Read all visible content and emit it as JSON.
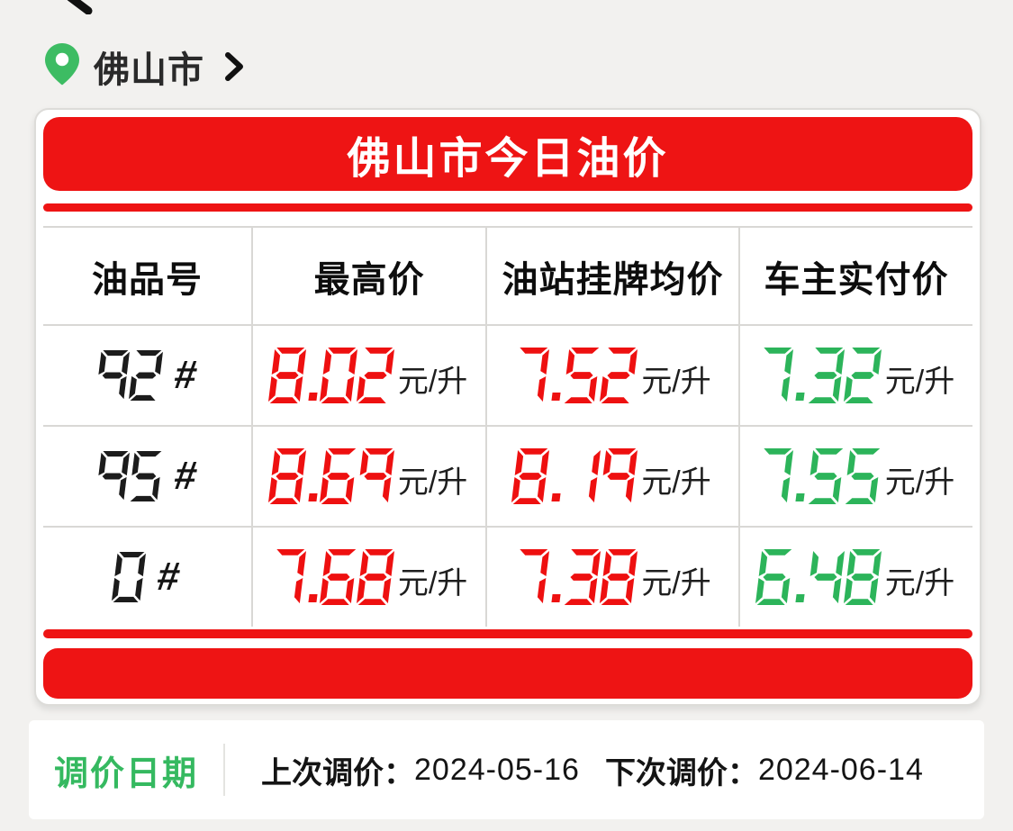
{
  "colors": {
    "red": "#ee1010",
    "green": "#2cb45a",
    "black": "#1c1c1c",
    "banner_red": "#ee1414",
    "pin_green": "#3dbc63",
    "label_green": "#35b960"
  },
  "nav": {
    "location": "佛山市"
  },
  "card": {
    "title": "佛山市今日油价",
    "table": {
      "headers": [
        "油品号",
        "最高价",
        "油站挂牌均价",
        "车主实付价"
      ],
      "unit": "元/升",
      "hash": "#",
      "rows": [
        {
          "product": "92",
          "prices": [
            {
              "value": "8.02",
              "color": "red"
            },
            {
              "value": "7.52",
              "color": "red"
            },
            {
              "value": "7.32",
              "color": "green"
            }
          ]
        },
        {
          "product": "95",
          "prices": [
            {
              "value": "8.69",
              "color": "red"
            },
            {
              "value": "8.19",
              "color": "red"
            },
            {
              "value": "7.55",
              "color": "green"
            }
          ]
        },
        {
          "product": "0",
          "prices": [
            {
              "value": "7.68",
              "color": "red"
            },
            {
              "value": "7.38",
              "color": "red"
            },
            {
              "value": "6.48",
              "color": "green"
            }
          ]
        }
      ]
    }
  },
  "footer": {
    "label": "调价日期",
    "last_label": "上次调价：",
    "last_value": "2024-05-16",
    "next_label": "下次调价：",
    "next_value": "2024-06-14"
  }
}
